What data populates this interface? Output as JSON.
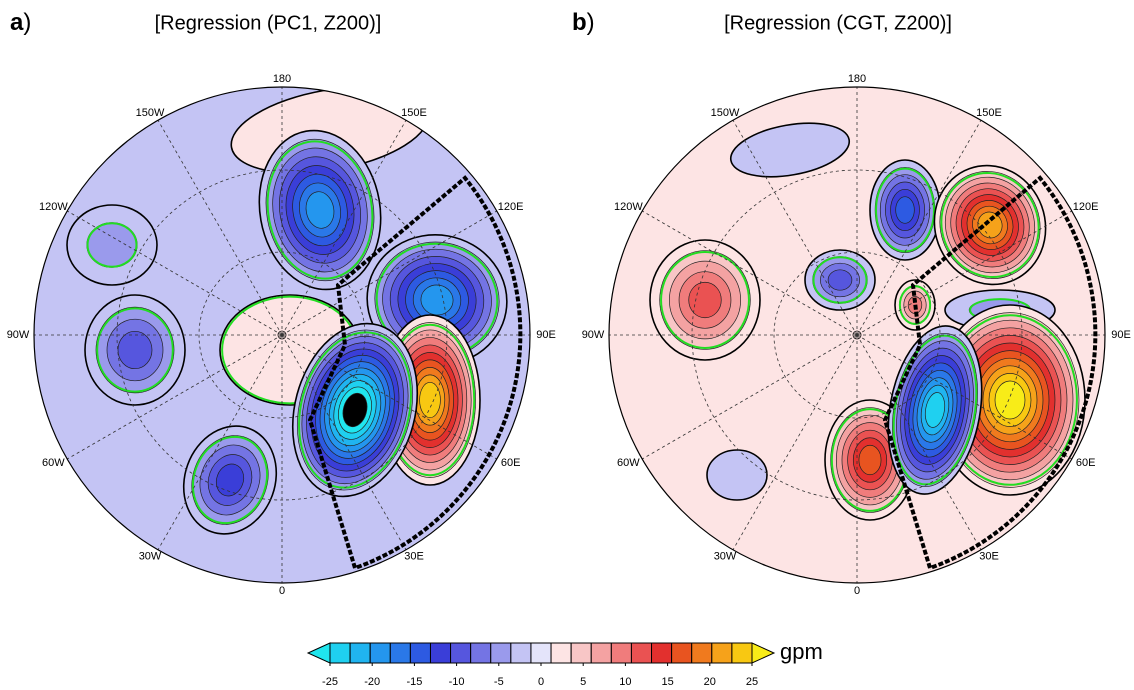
{
  "panels": [
    {
      "label": "a",
      "label_suffix": ")",
      "title": "[Regression (PC1, Z200)]",
      "longitudes": [
        "180",
        "150E",
        "120E",
        "90E",
        "60E",
        "30E",
        "0",
        "30W",
        "60W",
        "90W",
        "120W",
        "150W"
      ]
    },
    {
      "label": "b",
      "label_suffix": ")",
      "title": "[Regression (CGT, Z200)]",
      "longitudes": [
        "180",
        "150E",
        "120E",
        "90E",
        "60E",
        "30E",
        "0",
        "30W",
        "60W",
        "90W",
        "120W",
        "150W"
      ]
    }
  ],
  "colorbar": {
    "lim": [
      -25,
      25
    ],
    "ticks": [
      -25,
      -20,
      -15,
      -10,
      -5,
      0,
      5,
      10,
      15,
      20,
      25
    ],
    "unit": "gpm",
    "colors": [
      "#20e6ee",
      "#1fd0f0",
      "#20b4f0",
      "#2496ee",
      "#2a78e8",
      "#2d5ae2",
      "#3a3ed8",
      "#5656de",
      "#7474e4",
      "#9a9aec",
      "#c4c4f4",
      "#e4e4fa",
      "#fde4e4",
      "#f8c6c6",
      "#f4a2a2",
      "#f07c7c",
      "#ea5252",
      "#e2302e",
      "#e85420",
      "#f07a1e",
      "#f6a21a",
      "#f8c812",
      "#f8ec18"
    ]
  }
}
